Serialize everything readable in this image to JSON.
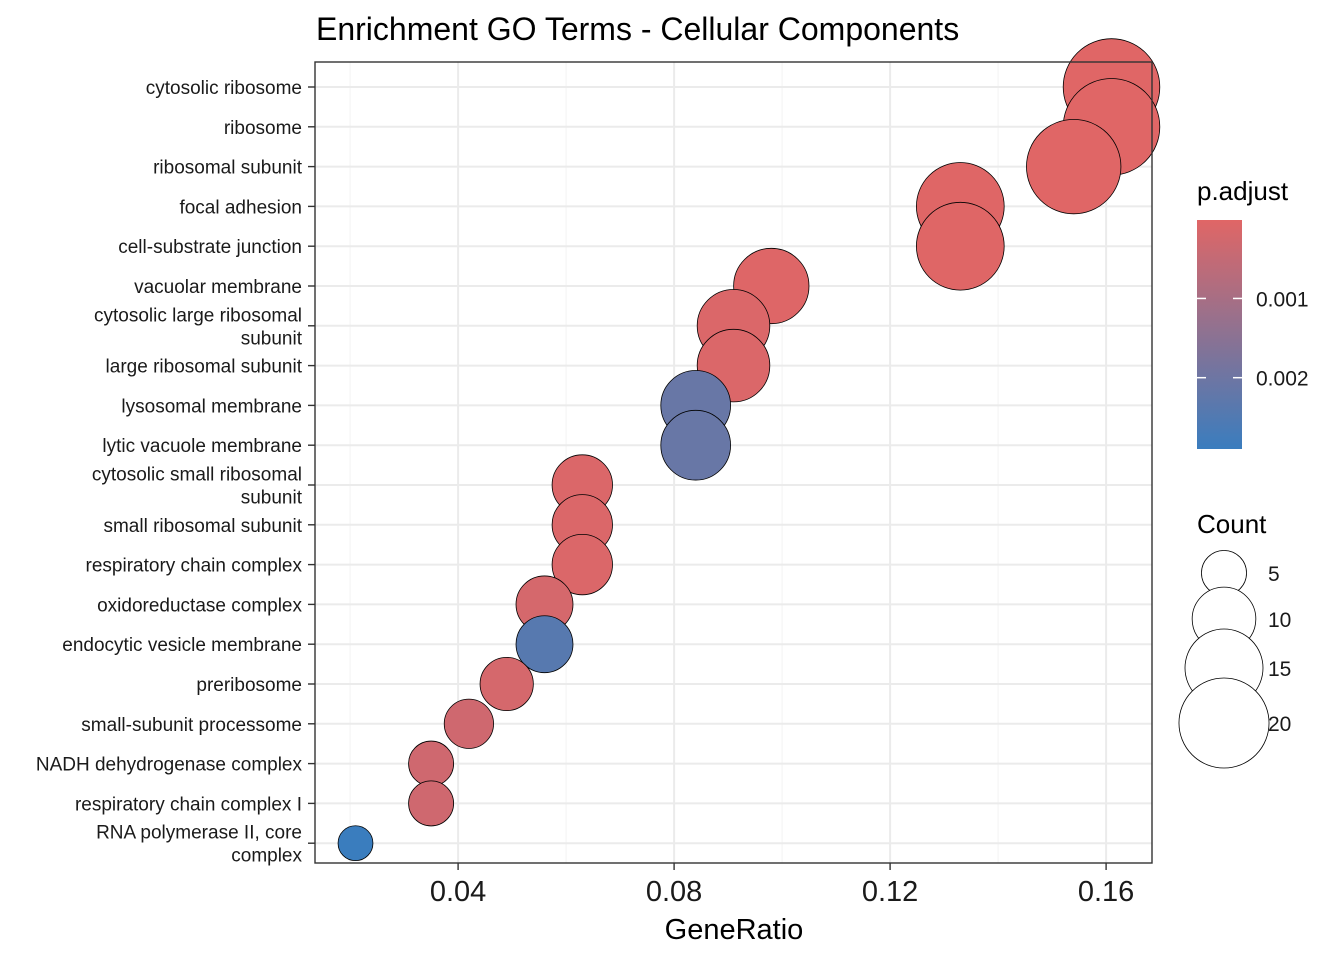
{
  "chart_data": {
    "type": "scatter",
    "title": "Enrichment GO Terms - Cellular Components",
    "xlabel": "GeneRatio",
    "ylabel": "",
    "xlim": [
      0.0135,
      0.1685
    ],
    "xticks": [
      "0.04",
      "0.08",
      "0.12",
      "0.16"
    ],
    "xtick_values": [
      0.04,
      0.08,
      0.12,
      0.16
    ],
    "grid": true,
    "categories": [
      [
        "cytosolic ribosome"
      ],
      [
        "ribosome"
      ],
      [
        "ribosomal subunit"
      ],
      [
        "focal adhesion"
      ],
      [
        "cell-substrate junction"
      ],
      [
        "vacuolar membrane"
      ],
      [
        "cytosolic large ribosomal",
        "subunit"
      ],
      [
        "large ribosomal subunit"
      ],
      [
        "lysosomal membrane"
      ],
      [
        "lytic vacuole membrane"
      ],
      [
        "cytosolic small ribosomal",
        "subunit"
      ],
      [
        "small ribosomal subunit"
      ],
      [
        "respiratory chain complex"
      ],
      [
        "oxidoreductase complex"
      ],
      [
        "endocytic vesicle membrane"
      ],
      [
        "preribosome"
      ],
      [
        "small-subunit processome"
      ],
      [
        "NADH dehydrogenase complex"
      ],
      [
        "respiratory chain complex I"
      ],
      [
        "RNA polymerase II, core",
        "complex"
      ]
    ],
    "gene_ratio": [
      0.161,
      0.161,
      0.154,
      0.133,
      0.133,
      0.098,
      0.091,
      0.091,
      0.084,
      0.084,
      0.063,
      0.063,
      0.063,
      0.056,
      0.056,
      0.049,
      0.042,
      0.035,
      0.035,
      0.021
    ],
    "count": [
      23,
      23,
      22,
      19,
      19,
      14,
      13,
      13,
      12,
      12,
      9,
      9,
      9,
      8,
      8,
      7,
      6,
      5,
      5,
      3
    ],
    "p_adjust": [
      1e-05,
      1e-05,
      1e-05,
      2e-05,
      2e-05,
      5e-05,
      0.0001,
      0.0001,
      0.0021,
      0.0021,
      0.0001,
      0.0001,
      0.0001,
      0.0002,
      0.0024,
      0.0002,
      0.0003,
      0.0003,
      0.0003,
      0.0029
    ],
    "legend": {
      "color_title": "p.adjust",
      "color_ticks": [
        "0.001",
        "0.002"
      ],
      "color_tick_values": [
        0.001,
        0.002
      ],
      "color_range": [
        1e-05,
        0.0029
      ],
      "color_low": "#E06666",
      "color_high": "#3A7DBE",
      "size_title": "Count",
      "size_values": [
        5,
        10,
        15,
        20
      ],
      "size_labels": [
        "5",
        "10",
        "15",
        "20"
      ],
      "placement": "right"
    }
  }
}
